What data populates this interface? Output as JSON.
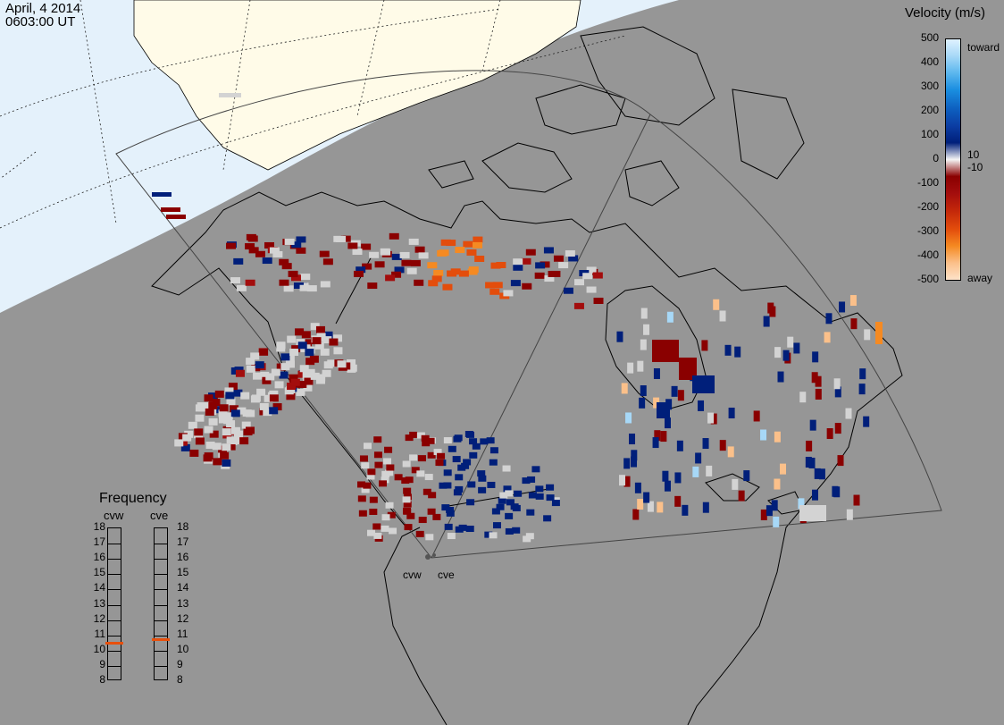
{
  "header": {
    "date": "April, 4 2014",
    "time": "0603:00 UT"
  },
  "velocity_scale": {
    "title": "Velocity (m/s)",
    "ticks": [
      "500",
      "400",
      "300",
      "200",
      "100",
      "10",
      "0",
      "-10",
      "-100",
      "-200",
      "-300",
      "-400",
      "-500"
    ],
    "toward_label": "toward",
    "away_label": "away",
    "colors": [
      "#dff2ff",
      "#a7d8f7",
      "#5cb7ee",
      "#1a8ee0",
      "#0d5fbf",
      "#0b3da3",
      "#001f7a",
      "#f5f5f5",
      "#8a0000",
      "#a30d0d",
      "#c2260a",
      "#e34d0c",
      "#f58a22",
      "#fbc08a",
      "#fde2c9"
    ]
  },
  "frequency": {
    "title": "Frequency",
    "stations": [
      {
        "name": "cvw",
        "value_mhz": 10.5
      },
      {
        "name": "cve",
        "value_mhz": 10.7
      }
    ],
    "scale": [
      "18",
      "17",
      "16",
      "15",
      "14",
      "13",
      "12",
      "11",
      "10",
      "9",
      "8"
    ]
  },
  "radar_sites": [
    "cvw",
    "cve"
  ],
  "colors": {
    "background": "#969696",
    "sunlit": "#e4f1fb",
    "land_sunlit": "#fffbe8",
    "scatter_gray": "#d3d3d3",
    "freq_marker": "#e8500c"
  }
}
